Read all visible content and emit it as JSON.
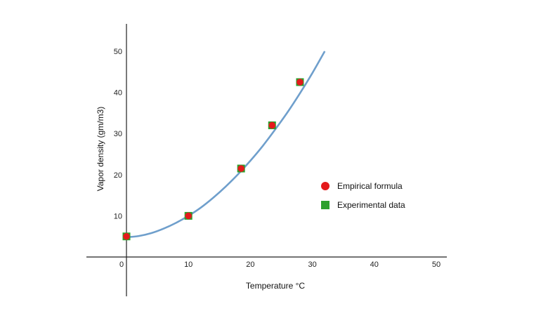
{
  "chart_data": {
    "type": "scatter",
    "xlabel": "Temperature °C",
    "ylabel": "Vapor density (gm/m3)",
    "xlim": [
      -6,
      52
    ],
    "ylim": [
      -10,
      57
    ],
    "x_ticks": [
      0,
      10,
      20,
      30,
      40,
      50
    ],
    "y_ticks": [
      10,
      20,
      30,
      40,
      50
    ],
    "grid": false,
    "legend_position": "right",
    "series": [
      {
        "name": "Empirical formula",
        "marker": "circle",
        "color": "#e41a1c",
        "x": [
          0,
          10,
          18.5,
          23.5,
          28
        ],
        "y": [
          5,
          10,
          21.5,
          32,
          42.5
        ]
      },
      {
        "name": "Experimental data",
        "marker": "square",
        "color": "#2ca02c",
        "x": [
          0,
          10,
          18.5,
          23.5,
          28
        ],
        "y": [
          5,
          10,
          21.5,
          32,
          42.5
        ]
      }
    ],
    "curve": {
      "color": "#6f9fcc",
      "x": [
        0,
        2,
        4,
        6,
        8,
        10,
        12,
        14,
        16,
        18,
        20,
        22,
        24,
        26,
        28,
        30,
        32
      ],
      "y": [
        4.8,
        5.1,
        5.8,
        6.9,
        8.3,
        10.0,
        12.0,
        14.4,
        17.1,
        20.1,
        23.4,
        27.0,
        31.0,
        35.2,
        39.8,
        44.7,
        50.0
      ]
    }
  }
}
